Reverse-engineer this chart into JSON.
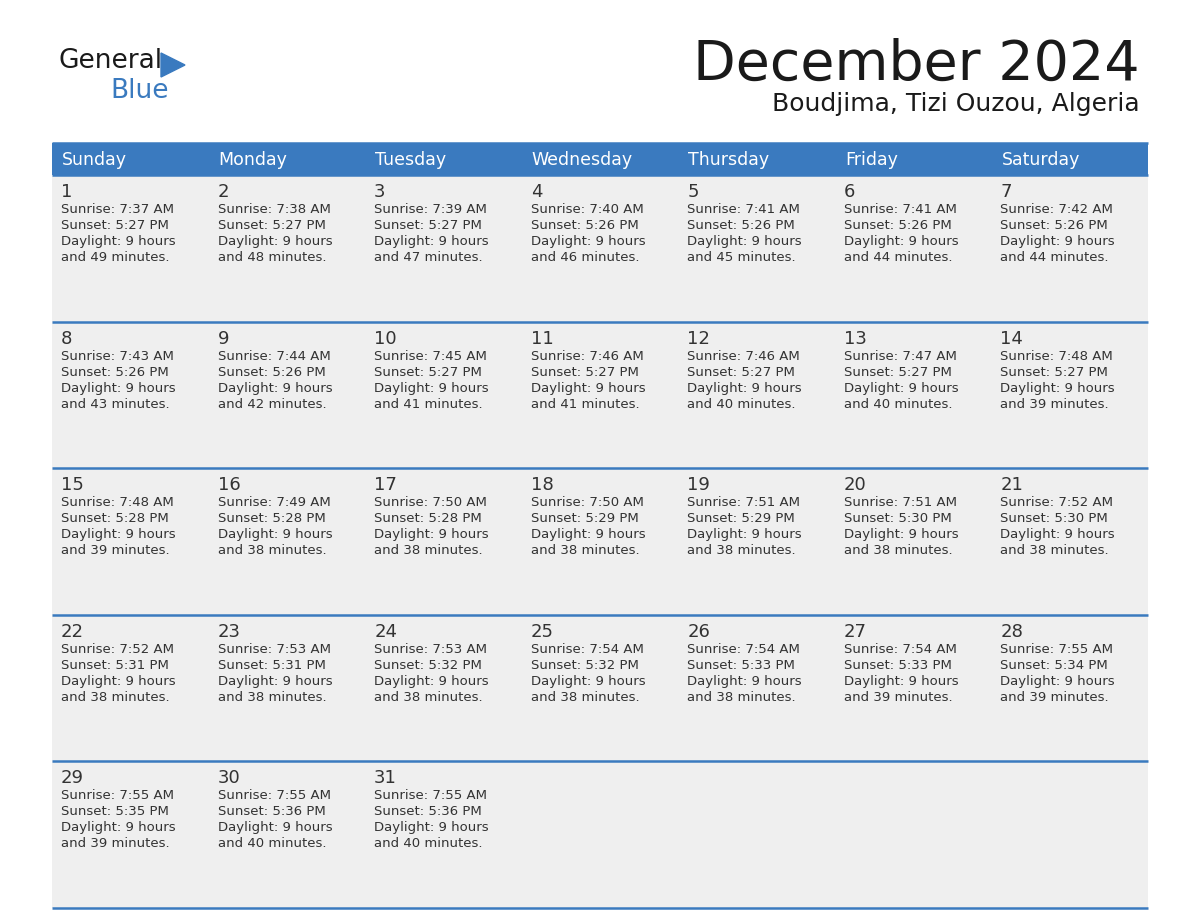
{
  "title": "December 2024",
  "subtitle": "Boudjima, Tizi Ouzou, Algeria",
  "header_color": "#3a7abf",
  "header_text_color": "#ffffff",
  "cell_bg": "#efefef",
  "border_color": "#3a7abf",
  "text_color": "#333333",
  "days_of_week": [
    "Sunday",
    "Monday",
    "Tuesday",
    "Wednesday",
    "Thursday",
    "Friday",
    "Saturday"
  ],
  "weeks": [
    [
      {
        "day": 1,
        "sunrise": "7:37 AM",
        "sunset": "5:27 PM",
        "daylight_line1": "Daylight: 9 hours",
        "daylight_line2": "and 49 minutes."
      },
      {
        "day": 2,
        "sunrise": "7:38 AM",
        "sunset": "5:27 PM",
        "daylight_line1": "Daylight: 9 hours",
        "daylight_line2": "and 48 minutes."
      },
      {
        "day": 3,
        "sunrise": "7:39 AM",
        "sunset": "5:27 PM",
        "daylight_line1": "Daylight: 9 hours",
        "daylight_line2": "and 47 minutes."
      },
      {
        "day": 4,
        "sunrise": "7:40 AM",
        "sunset": "5:26 PM",
        "daylight_line1": "Daylight: 9 hours",
        "daylight_line2": "and 46 minutes."
      },
      {
        "day": 5,
        "sunrise": "7:41 AM",
        "sunset": "5:26 PM",
        "daylight_line1": "Daylight: 9 hours",
        "daylight_line2": "and 45 minutes."
      },
      {
        "day": 6,
        "sunrise": "7:41 AM",
        "sunset": "5:26 PM",
        "daylight_line1": "Daylight: 9 hours",
        "daylight_line2": "and 44 minutes."
      },
      {
        "day": 7,
        "sunrise": "7:42 AM",
        "sunset": "5:26 PM",
        "daylight_line1": "Daylight: 9 hours",
        "daylight_line2": "and 44 minutes."
      }
    ],
    [
      {
        "day": 8,
        "sunrise": "7:43 AM",
        "sunset": "5:26 PM",
        "daylight_line1": "Daylight: 9 hours",
        "daylight_line2": "and 43 minutes."
      },
      {
        "day": 9,
        "sunrise": "7:44 AM",
        "sunset": "5:26 PM",
        "daylight_line1": "Daylight: 9 hours",
        "daylight_line2": "and 42 minutes."
      },
      {
        "day": 10,
        "sunrise": "7:45 AM",
        "sunset": "5:27 PM",
        "daylight_line1": "Daylight: 9 hours",
        "daylight_line2": "and 41 minutes."
      },
      {
        "day": 11,
        "sunrise": "7:46 AM",
        "sunset": "5:27 PM",
        "daylight_line1": "Daylight: 9 hours",
        "daylight_line2": "and 41 minutes."
      },
      {
        "day": 12,
        "sunrise": "7:46 AM",
        "sunset": "5:27 PM",
        "daylight_line1": "Daylight: 9 hours",
        "daylight_line2": "and 40 minutes."
      },
      {
        "day": 13,
        "sunrise": "7:47 AM",
        "sunset": "5:27 PM",
        "daylight_line1": "Daylight: 9 hours",
        "daylight_line2": "and 40 minutes."
      },
      {
        "day": 14,
        "sunrise": "7:48 AM",
        "sunset": "5:27 PM",
        "daylight_line1": "Daylight: 9 hours",
        "daylight_line2": "and 39 minutes."
      }
    ],
    [
      {
        "day": 15,
        "sunrise": "7:48 AM",
        "sunset": "5:28 PM",
        "daylight_line1": "Daylight: 9 hours",
        "daylight_line2": "and 39 minutes."
      },
      {
        "day": 16,
        "sunrise": "7:49 AM",
        "sunset": "5:28 PM",
        "daylight_line1": "Daylight: 9 hours",
        "daylight_line2": "and 38 minutes."
      },
      {
        "day": 17,
        "sunrise": "7:50 AM",
        "sunset": "5:28 PM",
        "daylight_line1": "Daylight: 9 hours",
        "daylight_line2": "and 38 minutes."
      },
      {
        "day": 18,
        "sunrise": "7:50 AM",
        "sunset": "5:29 PM",
        "daylight_line1": "Daylight: 9 hours",
        "daylight_line2": "and 38 minutes."
      },
      {
        "day": 19,
        "sunrise": "7:51 AM",
        "sunset": "5:29 PM",
        "daylight_line1": "Daylight: 9 hours",
        "daylight_line2": "and 38 minutes."
      },
      {
        "day": 20,
        "sunrise": "7:51 AM",
        "sunset": "5:30 PM",
        "daylight_line1": "Daylight: 9 hours",
        "daylight_line2": "and 38 minutes."
      },
      {
        "day": 21,
        "sunrise": "7:52 AM",
        "sunset": "5:30 PM",
        "daylight_line1": "Daylight: 9 hours",
        "daylight_line2": "and 38 minutes."
      }
    ],
    [
      {
        "day": 22,
        "sunrise": "7:52 AM",
        "sunset": "5:31 PM",
        "daylight_line1": "Daylight: 9 hours",
        "daylight_line2": "and 38 minutes."
      },
      {
        "day": 23,
        "sunrise": "7:53 AM",
        "sunset": "5:31 PM",
        "daylight_line1": "Daylight: 9 hours",
        "daylight_line2": "and 38 minutes."
      },
      {
        "day": 24,
        "sunrise": "7:53 AM",
        "sunset": "5:32 PM",
        "daylight_line1": "Daylight: 9 hours",
        "daylight_line2": "and 38 minutes."
      },
      {
        "day": 25,
        "sunrise": "7:54 AM",
        "sunset": "5:32 PM",
        "daylight_line1": "Daylight: 9 hours",
        "daylight_line2": "and 38 minutes."
      },
      {
        "day": 26,
        "sunrise": "7:54 AM",
        "sunset": "5:33 PM",
        "daylight_line1": "Daylight: 9 hours",
        "daylight_line2": "and 38 minutes."
      },
      {
        "day": 27,
        "sunrise": "7:54 AM",
        "sunset": "5:33 PM",
        "daylight_line1": "Daylight: 9 hours",
        "daylight_line2": "and 39 minutes."
      },
      {
        "day": 28,
        "sunrise": "7:55 AM",
        "sunset": "5:34 PM",
        "daylight_line1": "Daylight: 9 hours",
        "daylight_line2": "and 39 minutes."
      }
    ],
    [
      {
        "day": 29,
        "sunrise": "7:55 AM",
        "sunset": "5:35 PM",
        "daylight_line1": "Daylight: 9 hours",
        "daylight_line2": "and 39 minutes."
      },
      {
        "day": 30,
        "sunrise": "7:55 AM",
        "sunset": "5:36 PM",
        "daylight_line1": "Daylight: 9 hours",
        "daylight_line2": "and 40 minutes."
      },
      {
        "day": 31,
        "sunrise": "7:55 AM",
        "sunset": "5:36 PM",
        "daylight_line1": "Daylight: 9 hours",
        "daylight_line2": "and 40 minutes."
      },
      null,
      null,
      null,
      null
    ]
  ],
  "fig_width": 11.88,
  "fig_height": 9.18
}
